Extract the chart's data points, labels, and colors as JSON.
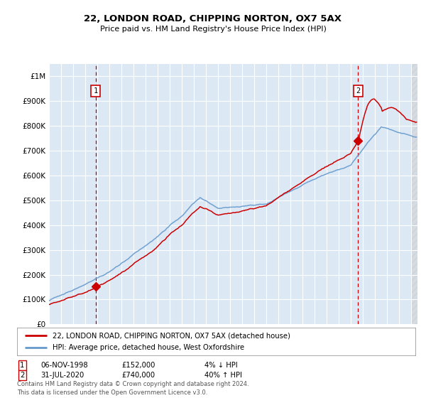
{
  "title": "22, LONDON ROAD, CHIPPING NORTON, OX7 5AX",
  "subtitle": "Price paid vs. HM Land Registry's House Price Index (HPI)",
  "legend_line1": "22, LONDON ROAD, CHIPPING NORTON, OX7 5AX (detached house)",
  "legend_line2": "HPI: Average price, detached house, West Oxfordshire",
  "table_rows": [
    {
      "num": "1",
      "date": "06-NOV-1998",
      "price": "£152,000",
      "change": "4% ↓ HPI"
    },
    {
      "num": "2",
      "date": "31-JUL-2020",
      "price": "£740,000",
      "change": "40% ↑ HPI"
    }
  ],
  "footnote": "Contains HM Land Registry data © Crown copyright and database right 2024.\nThis data is licensed under the Open Government Licence v3.0.",
  "sale1_year": 1998.85,
  "sale1_price": 152000,
  "sale2_year": 2020.58,
  "sale2_price": 740000,
  "vline1_year": 1998.85,
  "vline2_year": 2020.58,
  "ylim_max": 1050000,
  "ylim_min": 0,
  "xlim_min": 1995.0,
  "xlim_max": 2025.5,
  "red_color": "#cc0000",
  "blue_color": "#6699cc",
  "background_color": "#ffffff",
  "plot_bg_color": "#dce9f5",
  "grid_color": "#ffffff",
  "hatch_start": 2025.0
}
